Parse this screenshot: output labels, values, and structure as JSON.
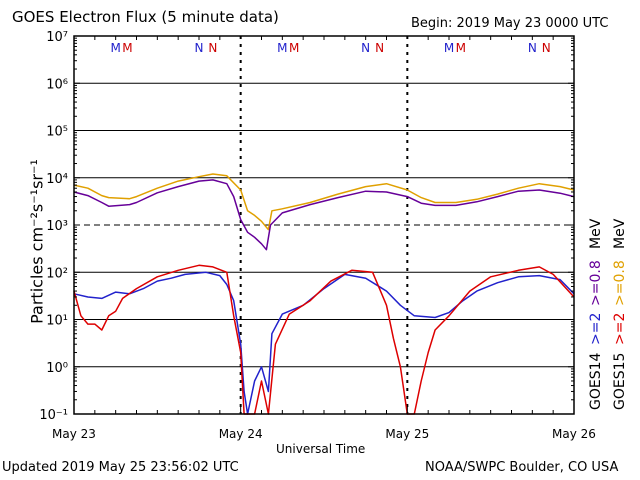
{
  "header": {
    "title": "GOES Electron Flux (5 minute data)",
    "begin": "Begin: 2019 May 23 0000 UTC"
  },
  "footer": {
    "updated": "Updated 2019 May 25 23:56:02 UTC",
    "credit": "NOAA/SWPC Boulder, CO USA"
  },
  "chart_data": {
    "type": "line",
    "title": "GOES Electron Flux (5 minute data)",
    "xlabel": "Universal Time",
    "ylabel": "Particles cm⁻²s⁻¹sr⁻¹",
    "yscale": "log",
    "ylim": [
      0.1,
      10000000
    ],
    "xlim": [
      0,
      72
    ],
    "x_unit": "hours since 2019 May 23 0000 UTC",
    "x_tick_labels": [
      "May 23",
      "May 24",
      "May 25",
      "May 26"
    ],
    "y_tick_labels": [
      "10⁻¹",
      "10⁰",
      "10¹",
      "10²",
      "10³",
      "10⁴",
      "10⁵",
      "10⁶",
      "10⁷"
    ],
    "threshold_level": 1000,
    "markers": [
      {
        "label": "M",
        "x": 6.0,
        "color": "#2222cc"
      },
      {
        "label": "M",
        "x": 7.7,
        "color": "#cc0000"
      },
      {
        "label": "N",
        "x": 18.0,
        "color": "#2222cc"
      },
      {
        "label": "N",
        "x": 20.0,
        "color": "#cc0000"
      },
      {
        "label": "M",
        "x": 30.0,
        "color": "#2222cc"
      },
      {
        "label": "M",
        "x": 31.7,
        "color": "#cc0000"
      },
      {
        "label": "N",
        "x": 42.0,
        "color": "#2222cc"
      },
      {
        "label": "N",
        "x": 44.0,
        "color": "#cc0000"
      },
      {
        "label": "M",
        "x": 54.0,
        "color": "#2222cc"
      },
      {
        "label": "M",
        "x": 55.7,
        "color": "#cc0000"
      },
      {
        "label": "N",
        "x": 66.0,
        "color": "#2222cc"
      },
      {
        "label": "N",
        "x": 68.0,
        "color": "#cc0000"
      }
    ],
    "right_labels": {
      "col1": [
        {
          "text": "GOES14",
          "color": "#000000"
        },
        {
          "text": ">=2",
          "color": "#2222cc"
        },
        {
          "text": ">=0.8",
          "color": "#660099"
        },
        {
          "text": "MeV",
          "color": "#000000"
        }
      ],
      "col2": [
        {
          "text": "GOES15",
          "color": "#000000"
        },
        {
          "text": ">=2",
          "color": "#dd0000"
        },
        {
          "text": ">=0.8",
          "color": "#e0a000"
        },
        {
          "text": "MeV",
          "color": "#000000"
        }
      ]
    },
    "series": [
      {
        "name": "GOES15 >=0.8 MeV",
        "color": "#e0a000",
        "points": [
          [
            0,
            7000
          ],
          [
            2,
            6000
          ],
          [
            4,
            4200
          ],
          [
            5,
            3800
          ],
          [
            8,
            3600
          ],
          [
            9,
            4000
          ],
          [
            12,
            6000
          ],
          [
            15,
            8500
          ],
          [
            18,
            10500
          ],
          [
            20,
            12000
          ],
          [
            22,
            11000
          ],
          [
            24,
            5500
          ],
          [
            25,
            2000
          ],
          [
            26,
            1600
          ],
          [
            27,
            1200
          ],
          [
            28,
            800
          ],
          [
            28.5,
            2000
          ],
          [
            30,
            2200
          ],
          [
            34,
            3000
          ],
          [
            38,
            4500
          ],
          [
            42,
            6500
          ],
          [
            45,
            7500
          ],
          [
            48,
            5500
          ],
          [
            50,
            3800
          ],
          [
            52,
            3000
          ],
          [
            55,
            3000
          ],
          [
            58,
            3500
          ],
          [
            61,
            4500
          ],
          [
            64,
            6000
          ],
          [
            67,
            7500
          ],
          [
            70,
            6500
          ],
          [
            72,
            5500
          ]
        ]
      },
      {
        "name": "GOES14 >=0.8 MeV",
        "color": "#660099",
        "points": [
          [
            0,
            5000
          ],
          [
            2,
            4200
          ],
          [
            4,
            3000
          ],
          [
            5,
            2500
          ],
          [
            8,
            2700
          ],
          [
            9,
            3000
          ],
          [
            12,
            4800
          ],
          [
            15,
            6500
          ],
          [
            18,
            8500
          ],
          [
            20,
            9000
          ],
          [
            22,
            7500
          ],
          [
            23,
            4000
          ],
          [
            24,
            1300
          ],
          [
            25,
            700
          ],
          [
            26,
            550
          ],
          [
            27,
            400
          ],
          [
            27.7,
            300
          ],
          [
            28.3,
            1000
          ],
          [
            30,
            1800
          ],
          [
            34,
            2700
          ],
          [
            38,
            3800
          ],
          [
            42,
            5200
          ],
          [
            45,
            5000
          ],
          [
            48,
            4000
          ],
          [
            50,
            2900
          ],
          [
            52,
            2600
          ],
          [
            55,
            2600
          ],
          [
            58,
            3100
          ],
          [
            61,
            4000
          ],
          [
            64,
            5200
          ],
          [
            67,
            5500
          ],
          [
            70,
            4700
          ],
          [
            72,
            4000
          ]
        ]
      },
      {
        "name": "GOES14 >=2 MeV",
        "color": "#2222cc",
        "points": [
          [
            0,
            35
          ],
          [
            2,
            30
          ],
          [
            4,
            28
          ],
          [
            6,
            38
          ],
          [
            8,
            35
          ],
          [
            10,
            45
          ],
          [
            12,
            65
          ],
          [
            14,
            75
          ],
          [
            16,
            90
          ],
          [
            19,
            100
          ],
          [
            21,
            85
          ],
          [
            22,
            55
          ],
          [
            23,
            25
          ],
          [
            24,
            3
          ],
          [
            24.5,
            0.3
          ],
          [
            25,
            0.1
          ],
          [
            26,
            0.5
          ],
          [
            27,
            1
          ],
          [
            28,
            0.3
          ],
          [
            28.5,
            5
          ],
          [
            30,
            13
          ],
          [
            33,
            20
          ],
          [
            36,
            45
          ],
          [
            39,
            90
          ],
          [
            42,
            75
          ],
          [
            45,
            40
          ],
          [
            47,
            20
          ],
          [
            49,
            12
          ],
          [
            52,
            11
          ],
          [
            54,
            14
          ],
          [
            56,
            25
          ],
          [
            58,
            40
          ],
          [
            61,
            60
          ],
          [
            64,
            80
          ],
          [
            67,
            85
          ],
          [
            70,
            70
          ],
          [
            72,
            35
          ]
        ]
      },
      {
        "name": "GOES15 >=2 MeV",
        "color": "#dd0000",
        "points": [
          [
            0,
            40
          ],
          [
            1,
            12
          ],
          [
            2,
            8
          ],
          [
            3,
            8
          ],
          [
            4,
            6
          ],
          [
            5,
            12
          ],
          [
            6,
            15
          ],
          [
            7,
            28
          ],
          [
            9,
            45
          ],
          [
            12,
            80
          ],
          [
            15,
            110
          ],
          [
            18,
            140
          ],
          [
            20,
            130
          ],
          [
            22,
            100
          ],
          [
            23,
            12
          ],
          [
            24,
            2
          ],
          [
            24.5,
            0.1
          ],
          [
            26,
            0.1
          ],
          [
            27,
            0.5
          ],
          [
            28,
            0.1
          ],
          [
            29,
            3
          ],
          [
            31,
            13
          ],
          [
            34,
            25
          ],
          [
            37,
            65
          ],
          [
            40,
            110
          ],
          [
            43,
            100
          ],
          [
            45,
            20
          ],
          [
            46,
            4
          ],
          [
            47,
            1
          ],
          [
            48,
            0.1
          ],
          [
            49,
            0.1
          ],
          [
            50,
            0.5
          ],
          [
            51,
            2
          ],
          [
            52,
            6
          ],
          [
            54,
            12
          ],
          [
            57,
            40
          ],
          [
            60,
            80
          ],
          [
            64,
            110
          ],
          [
            67,
            130
          ],
          [
            69,
            90
          ],
          [
            72,
            30
          ]
        ]
      }
    ]
  }
}
